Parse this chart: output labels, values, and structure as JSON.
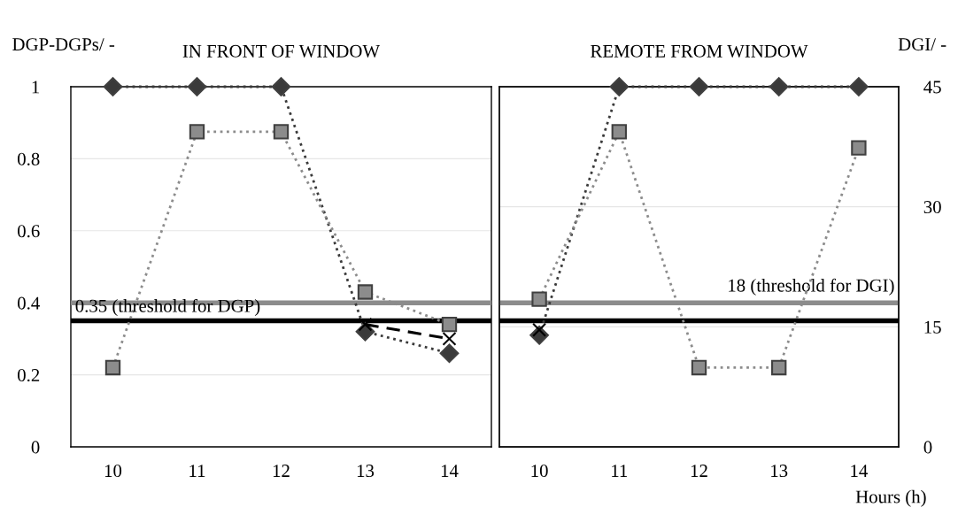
{
  "chart_data": [
    {
      "type": "line",
      "title": "IN FRONT OF WINDOW",
      "ylabel": "DGP-DGPs/ -",
      "categories": [
        "10",
        "11",
        "12",
        "13",
        "14"
      ],
      "series": [
        {
          "color": "#3a3a3a",
          "marker": "diamond",
          "line_style": "dotted",
          "values": [
            1,
            1,
            1,
            0.32,
            0.26
          ]
        },
        {
          "color": "#8c8c8c",
          "marker": "square",
          "line_style": "dotted",
          "values": [
            0.22,
            0.875,
            0.875,
            0.43,
            0.34
          ]
        },
        {
          "color": "#000000",
          "marker": "cross",
          "line_style": "dashed",
          "values": [
            null,
            null,
            null,
            0.34,
            0.3
          ]
        }
      ],
      "ylim": [
        0,
        1
      ],
      "yticks": [
        0,
        0.2,
        0.4,
        0.6,
        0.8,
        1
      ],
      "tick_labels": [
        "x",
        "y"
      ],
      "grid": "y",
      "ref_lines": [
        {
          "axis": "y",
          "value": 0.4,
          "color": "#8c8c8c"
        },
        {
          "axis": "y",
          "value": 0.35,
          "label": "0.35 (threshold for DGP)",
          "color": "#000000"
        }
      ]
    },
    {
      "type": "line",
      "title": "REMOTE FROM WINDOW",
      "y2label": "DGI/ -",
      "xlabel": "Hours (h)",
      "categories": [
        "10",
        "11",
        "12",
        "13",
        "14"
      ],
      "series": [
        {
          "color": "#3a3a3a",
          "marker": "diamond",
          "line_style": "dotted",
          "values": [
            0.31,
            1,
            1,
            1,
            1
          ]
        },
        {
          "color": "#8c8c8c",
          "marker": "square",
          "line_style": "dotted",
          "values": [
            0.41,
            0.875,
            0.22,
            0.22,
            0.83
          ]
        },
        {
          "color": "#000000",
          "marker": "cross",
          "line_style": "dashed",
          "values": [
            0.325,
            null,
            null,
            null,
            null
          ]
        }
      ],
      "ylim": [
        0,
        1
      ],
      "y2lim": [
        0,
        45
      ],
      "y2ticks": [
        0,
        15,
        30,
        45
      ],
      "tick_labels": [
        "x",
        "y2"
      ],
      "grid": "y",
      "ref_lines": [
        {
          "axis": "y2",
          "value": 18,
          "label": "18 (threshold for DGI)",
          "color": "#8c8c8c"
        },
        {
          "axis": "y",
          "value": 0.35,
          "color": "#000000"
        }
      ]
    }
  ]
}
